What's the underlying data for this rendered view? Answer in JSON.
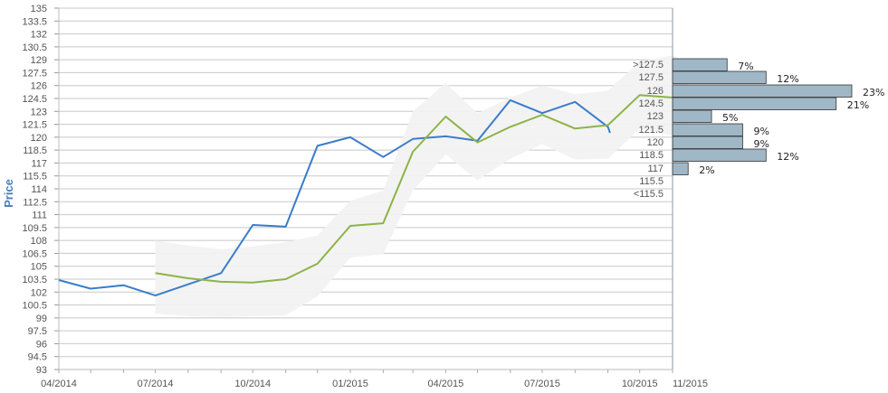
{
  "chart_data": {
    "type": "line",
    "title": "",
    "xlabel": "",
    "ylabel": "Price",
    "ylim": [
      93,
      135
    ],
    "grid": true,
    "y_ticks": [
      "135",
      "133.5",
      "132",
      "130.5",
      "129",
      "127.5",
      "126",
      "124.5",
      "123",
      "121.5",
      "120",
      "118.5",
      "117",
      "115.5",
      "114",
      "112.5",
      "111",
      "109.5",
      "108",
      "106.5",
      "105",
      "103.5",
      "102",
      "100.5",
      "99",
      "97.5",
      "96",
      "94.5",
      "93"
    ],
    "x_ticks": [
      "04/2014",
      "07/2014",
      "10/2014",
      "01/2015",
      "04/2015",
      "07/2015",
      "10/2015",
      "11/2015"
    ],
    "series": [
      {
        "color": "#3a7dc9",
        "points": [
          [
            "2014-04-01",
            103.4
          ],
          [
            "2014-05-01",
            102.4
          ],
          [
            "2014-06-01",
            102.8
          ],
          [
            "2014-07-01",
            101.6
          ],
          [
            "2014-08-01",
            102.9
          ],
          [
            "2014-09-01",
            104.2
          ],
          [
            "2014-10-01",
            109.8
          ],
          [
            "2014-11-01",
            109.6
          ],
          [
            "2014-12-01",
            119.0
          ],
          [
            "2015-01-01",
            120.0
          ],
          [
            "2015-02-01",
            117.7
          ],
          [
            "2015-03-01",
            119.8
          ],
          [
            "2015-04-01",
            120.1
          ],
          [
            "2015-05-01",
            119.6
          ],
          [
            "2015-06-01",
            124.3
          ],
          [
            "2015-07-01",
            122.8
          ],
          [
            "2015-08-01",
            124.1
          ],
          [
            "2015-09-01",
            121.2
          ],
          [
            "2015-09-03",
            120.5
          ]
        ]
      },
      {
        "color": "#8db347",
        "points": [
          [
            "2014-07-01",
            104.2
          ],
          [
            "2014-08-01",
            103.6
          ],
          [
            "2014-09-01",
            103.2
          ],
          [
            "2014-10-01",
            103.1
          ],
          [
            "2014-11-01",
            103.5
          ],
          [
            "2014-12-01",
            105.3
          ],
          [
            "2015-01-01",
            109.7
          ],
          [
            "2015-02-01",
            110.0
          ],
          [
            "2015-03-01",
            118.3
          ],
          [
            "2015-04-01",
            122.4
          ],
          [
            "2015-05-01",
            119.4
          ],
          [
            "2015-06-01",
            121.2
          ],
          [
            "2015-07-01",
            122.6
          ],
          [
            "2015-08-01",
            121.0
          ],
          [
            "2015-09-01",
            121.4
          ],
          [
            "2015-10-01",
            124.9
          ],
          [
            "2015-11-01",
            124.6
          ],
          [
            "2015-11-15",
            123.6
          ]
        ]
      }
    ],
    "band": {
      "color": "#f2f2f2",
      "points": [
        [
          "2014-07-01",
          108.0,
          99.5
        ],
        [
          "2014-08-01",
          107.4,
          99.2
        ],
        [
          "2014-09-01",
          107.0,
          99.1
        ],
        [
          "2014-10-01",
          107.3,
          99.2
        ],
        [
          "2014-11-01",
          107.8,
          99.3
        ],
        [
          "2014-12-01",
          108.6,
          101.5
        ],
        [
          "2015-01-01",
          112.6,
          106.0
        ],
        [
          "2015-02-01",
          113.8,
          106.4
        ],
        [
          "2015-03-01",
          123.0,
          113.8
        ],
        [
          "2015-04-01",
          126.3,
          118.0
        ],
        [
          "2015-05-01",
          122.8,
          115.0
        ],
        [
          "2015-06-01",
          124.6,
          117.5
        ],
        [
          "2015-07-01",
          126.0,
          119.2
        ],
        [
          "2015-08-01",
          125.0,
          117.4
        ],
        [
          "2015-09-01",
          125.4,
          117.5
        ],
        [
          "2015-10-01",
          128.8,
          121.0
        ],
        [
          "2015-11-01",
          129.5,
          120.2
        ],
        [
          "2015-11-15",
          128.6,
          119.8
        ]
      ]
    },
    "histogram": {
      "color": "#9fb7c6",
      "edge_color": "#333333",
      "bins": [
        {
          "label": ">127.5",
          "pct": 7,
          "pct_label": "7%"
        },
        {
          "label": "127.5",
          "pct": 12,
          "pct_label": "12%"
        },
        {
          "label": "126",
          "pct": 23,
          "pct_label": "23%"
        },
        {
          "label": "124.5",
          "pct": 21,
          "pct_label": "21%"
        },
        {
          "label": "123",
          "pct": 5,
          "pct_label": "5%"
        },
        {
          "label": "121.5",
          "pct": 9,
          "pct_label": "9%"
        },
        {
          "label": "120",
          "pct": 9,
          "pct_label": "9%"
        },
        {
          "label": "118.5",
          "pct": 12,
          "pct_label": "12%"
        },
        {
          "label": "117",
          "pct": 2,
          "pct_label": "2%"
        },
        {
          "label": "115.5",
          "pct": null,
          "pct_label": ""
        },
        {
          "label": "<115.5",
          "pct": null,
          "pct_label": ""
        }
      ]
    }
  }
}
